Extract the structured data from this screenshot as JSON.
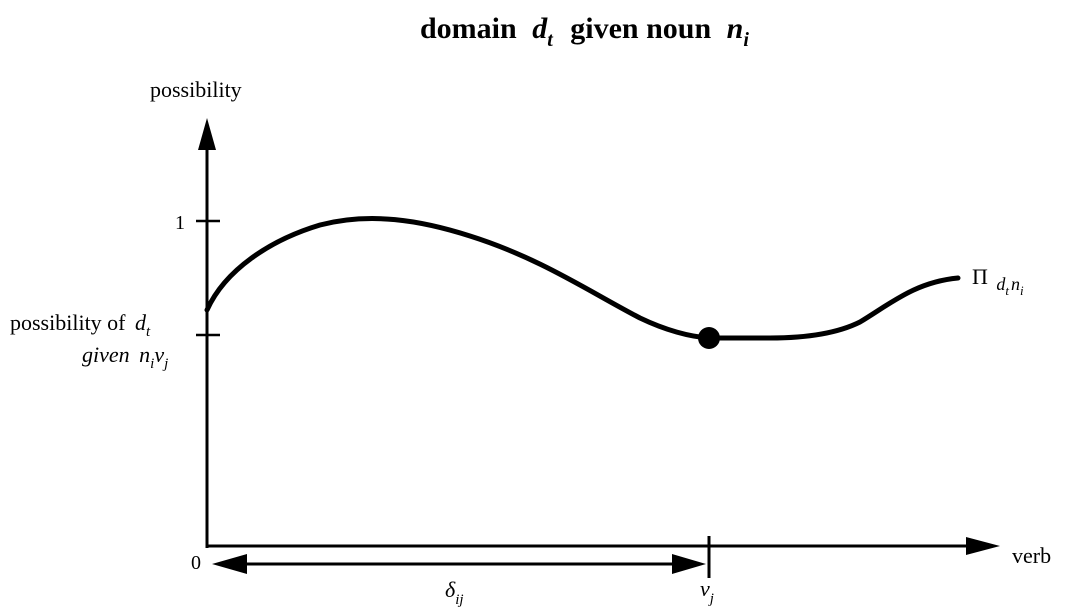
{
  "title": {
    "word_domain": "domain",
    "var_d": "d",
    "sub_t": "t",
    "word_given_noun": "given noun",
    "var_n": "n",
    "sub_i": "i"
  },
  "y_axis": {
    "label": "possibility",
    "tick_one": "1",
    "origin": "0"
  },
  "x_axis": {
    "label": "verb"
  },
  "annotation": {
    "line1_prefix": "possibility of",
    "var_d": "d",
    "sub_t": "t",
    "line2_given": "given",
    "var_n": "n",
    "sub_i": "i",
    "var_v": "v",
    "sub_j": "j"
  },
  "curve_label": {
    "symbol": "Π",
    "var_d": "d",
    "sub_t": "t",
    "var_n": "n",
    "sub_i": "i"
  },
  "delta_label": {
    "symbol": "δ",
    "sub": "ij"
  },
  "vj_label": {
    "var": "v",
    "sub": "j"
  },
  "colors": {
    "ink": "#000000",
    "background": "#ffffff"
  }
}
